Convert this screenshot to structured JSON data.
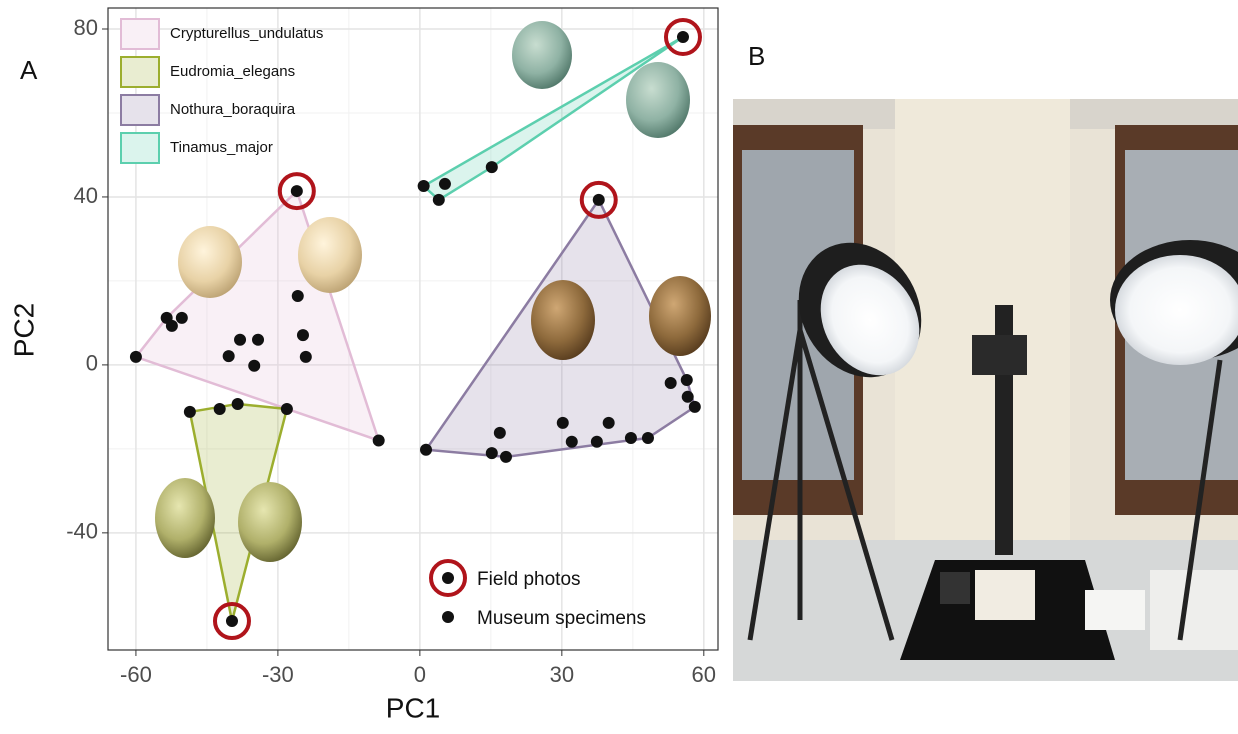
{
  "chart_data": {
    "type": "scatter",
    "panel_label": "A",
    "photo_label": "B",
    "xlabel": "PC1",
    "ylabel": "PC2",
    "xlim": [
      -65.9,
      63
    ],
    "ylim": [
      -67.9,
      85
    ],
    "xticks": [
      -60,
      -30,
      0,
      30,
      60
    ],
    "yticks": [
      -40,
      0,
      40,
      80
    ],
    "grid": true,
    "series": [
      {
        "name": "Crypturellus_undulatus",
        "color": "#e2bcd6",
        "field_point": 1,
        "x": [
          -60,
          -26,
          -8.7,
          -53.5,
          -52.4,
          -50.3,
          -38,
          -34.2,
          -40.4,
          -35,
          -25.8,
          -24.7,
          -24.1
        ],
        "values": [
          1.9,
          41.4,
          -18,
          11.2,
          9.3,
          11.2,
          6,
          6,
          2.1,
          -0.2,
          16.4,
          7.1,
          1.9
        ]
      },
      {
        "name": "Eudromia_elegans",
        "color": "#9cae2e",
        "field_point": 4,
        "x": [
          -48.6,
          -42.3,
          -38.5,
          -28.1,
          -39.7
        ],
        "values": [
          -11.2,
          -10.5,
          -9.3,
          -10.5,
          -61
        ]
      },
      {
        "name": "Nothura_boraquira",
        "color": "#8c7ca2",
        "field_point": 1,
        "x": [
          1.3,
          37.8,
          58.1,
          56.4,
          56.6,
          53,
          16.9,
          15.2,
          18.2,
          30.2,
          32.1,
          39.9,
          37.4,
          44.6,
          48.2
        ],
        "values": [
          -20.2,
          39.3,
          -10,
          -3.6,
          -7.6,
          -4.3,
          -16.2,
          -21,
          -21.9,
          -13.8,
          -18.3,
          -13.8,
          -18.3,
          -17.4,
          -17.4
        ]
      },
      {
        "name": "Tinamus_major",
        "color": "#5ccfae",
        "field_point": 4,
        "x": [
          0.8,
          4,
          5.3,
          15.2,
          55.6
        ],
        "values": [
          42.6,
          39.3,
          43.1,
          47.1,
          78.1
        ]
      }
    ],
    "marker_legend": [
      "Field photos",
      "Museum specimens"
    ]
  }
}
